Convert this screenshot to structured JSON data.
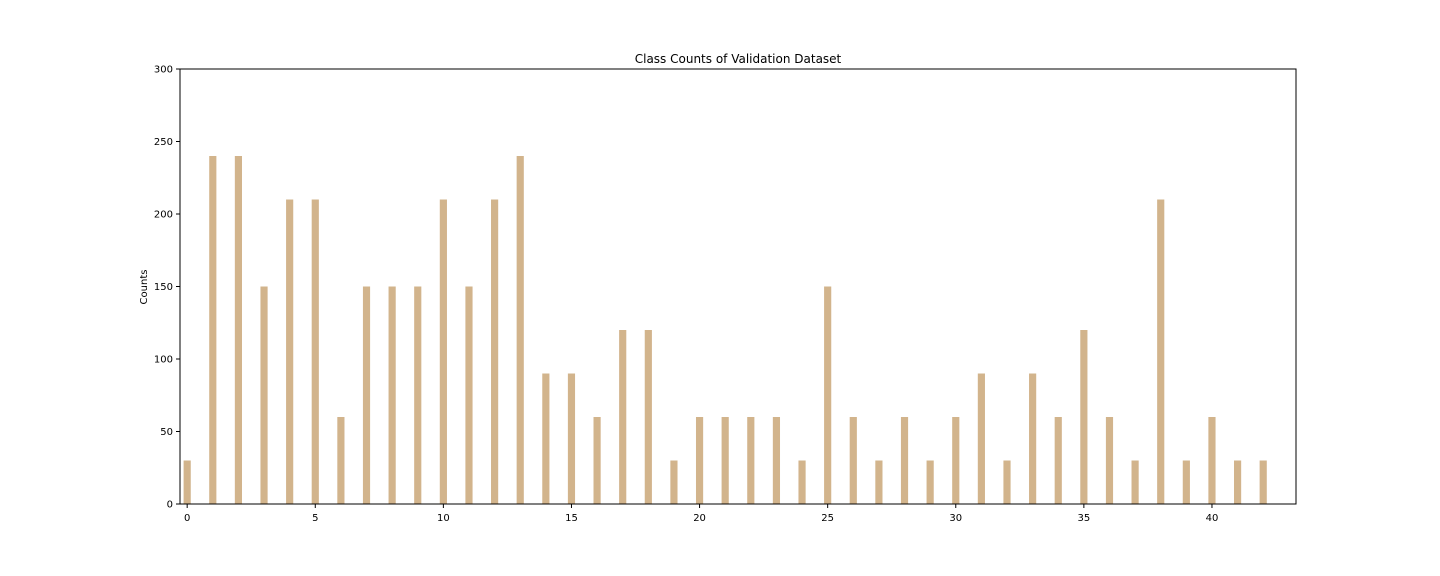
{
  "chart_data": {
    "type": "bar",
    "title": "Class Counts of Validation Dataset",
    "xlabel": "",
    "ylabel": "Counts",
    "categories": [
      0,
      1,
      2,
      3,
      4,
      5,
      6,
      7,
      8,
      9,
      10,
      11,
      12,
      13,
      14,
      15,
      16,
      17,
      18,
      19,
      20,
      21,
      22,
      23,
      24,
      25,
      26,
      27,
      28,
      29,
      30,
      31,
      32,
      33,
      34,
      35,
      36,
      37,
      38,
      39,
      40,
      41,
      42
    ],
    "values": [
      30,
      240,
      240,
      150,
      210,
      210,
      60,
      150,
      150,
      150,
      210,
      150,
      210,
      240,
      90,
      90,
      60,
      120,
      120,
      30,
      60,
      60,
      60,
      60,
      30,
      150,
      60,
      30,
      60,
      30,
      60,
      90,
      30,
      90,
      60,
      120,
      60,
      30,
      210,
      30,
      60,
      30,
      30
    ],
    "ylim": [
      0,
      300
    ],
    "xlim": [
      -0.28,
      43.28
    ],
    "yticks": [
      0,
      50,
      100,
      150,
      200,
      250,
      300
    ],
    "xticks": [
      0,
      5,
      10,
      15,
      20,
      25,
      30,
      35,
      40
    ],
    "bar_color": "#D2B48C",
    "grid": false,
    "legend": "none"
  }
}
